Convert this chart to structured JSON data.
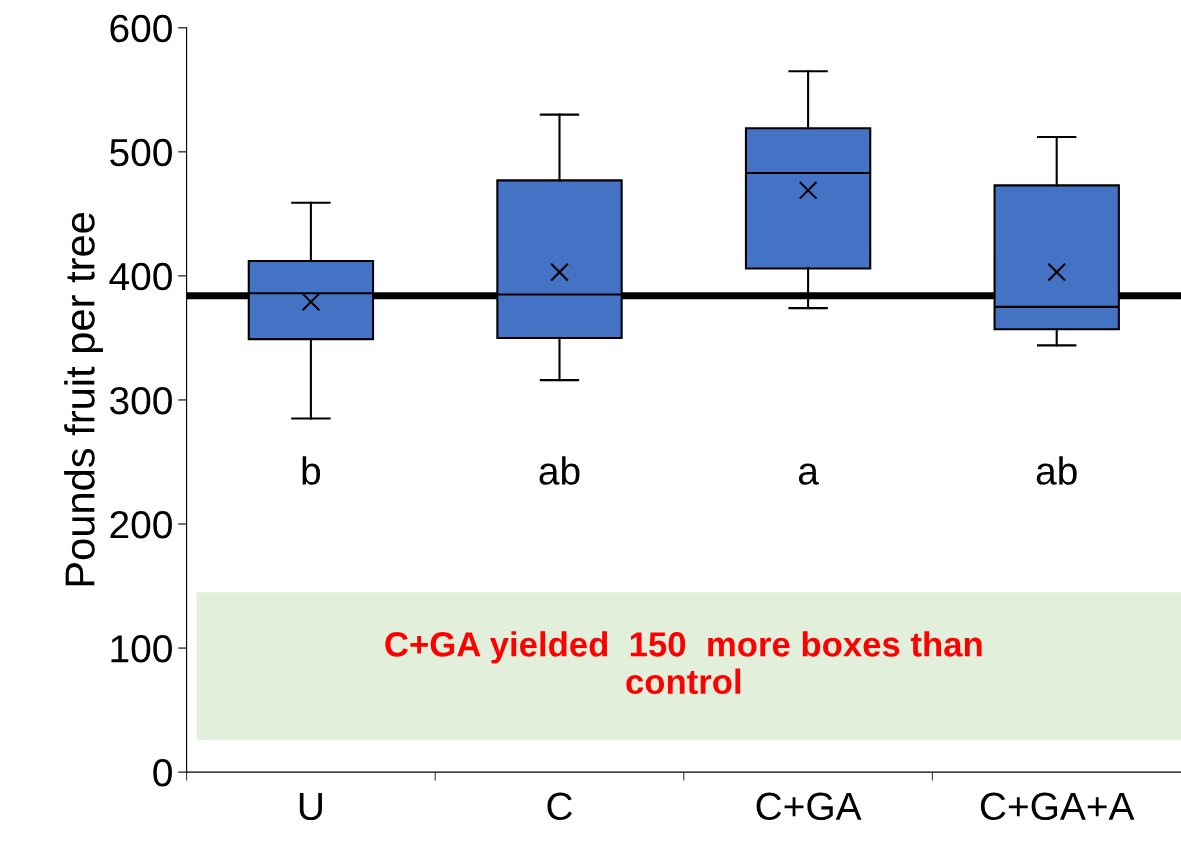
{
  "chart_data": {
    "type": "box",
    "ylabel": "Pounds fruit per tree",
    "categories": [
      "U",
      "C",
      "C+GA",
      "C+GA+A"
    ],
    "series": [
      {
        "color": "#4472c4",
        "boxes": [
          {
            "low": 285,
            "q1": 349,
            "median": 386,
            "q3": 412,
            "high": 459,
            "mean": 379
          },
          {
            "low": 316,
            "q1": 350,
            "median": 385,
            "q3": 477,
            "high": 530,
            "mean": 403
          },
          {
            "low": 374,
            "q1": 406,
            "median": 483,
            "q3": 519,
            "high": 565,
            "mean": 469
          },
          {
            "low": 344,
            "q1": 357,
            "median": 375,
            "q3": 473,
            "high": 512,
            "mean": 403
          }
        ]
      }
    ],
    "ylim": [
      0,
      600
    ],
    "yticks": [
      0,
      100,
      200,
      300,
      400,
      500,
      600
    ],
    "grid": false,
    "ref_lines": [
      {
        "axis": "y",
        "value": 384,
        "color": "#000000"
      }
    ],
    "bands": [
      {
        "axis": "y",
        "from": 26,
        "to": 145,
        "color": "#e2efda",
        "label": "C+GA yielded  150  more boxes than\ncontrol"
      }
    ],
    "annotations": [
      "b",
      "ab",
      "a",
      "ab"
    ]
  }
}
